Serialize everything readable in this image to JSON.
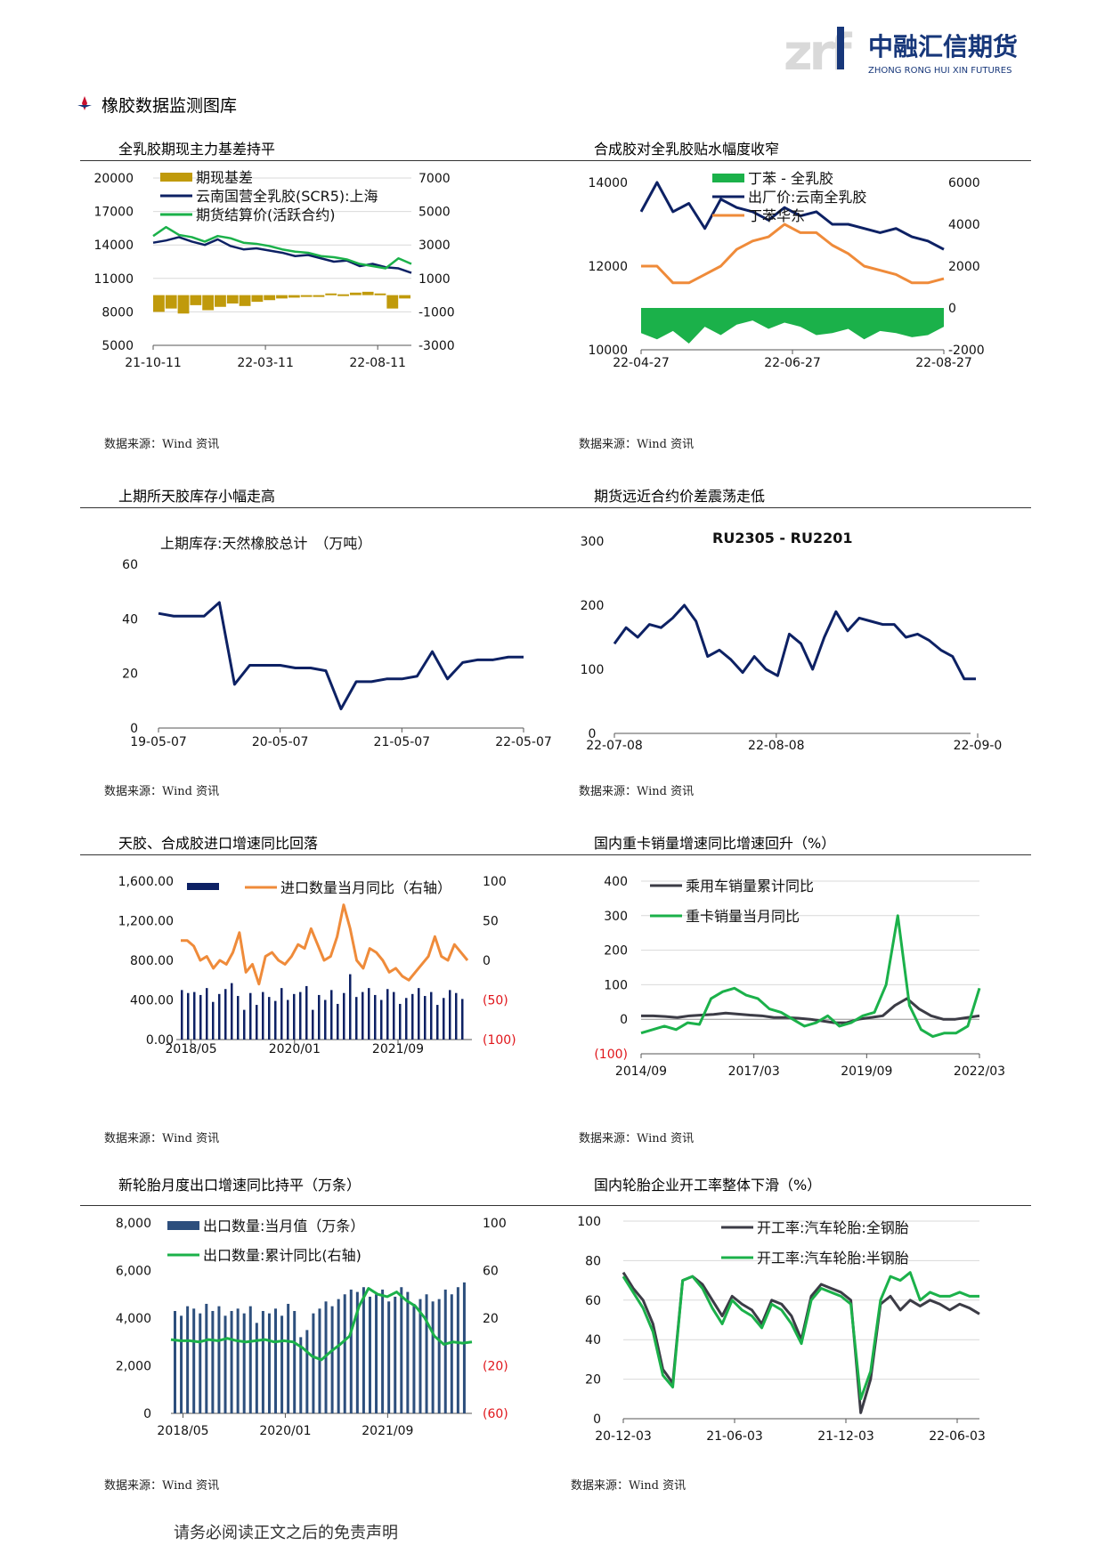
{
  "header": {
    "logo_cn": "中融汇信期货",
    "logo_en": "ZHONG RONG HUI XIN FUTURES",
    "logo_mark": "zrf",
    "section_title": "橡胶数据监测图库"
  },
  "footer": {
    "text": "请务必阅读正文之后的免责声明"
  },
  "panels": [
    {
      "title": "全乳胶期现主力基差持平",
      "source": "数据来源：Wind 资讯"
    },
    {
      "title": "合成胶对全乳胶贴水幅度收窄",
      "source": "数据来源：Wind 资讯"
    },
    {
      "title": "上期所天胶库存小幅走高",
      "source": "数据来源：Wind 资讯"
    },
    {
      "title": "期货远近合约价差震荡走低",
      "source": "数据来源：Wind 资讯"
    },
    {
      "title": "天胶、合成胶进口增速同比回落",
      "source": "数据来源：Wind 资讯"
    },
    {
      "title": "国内重卡销量增速同比增速回升（%）",
      "source": "数据来源：Wind 资讯"
    },
    {
      "title": "新轮胎月度出口增速同比持平（万条）",
      "source": "数据来源：Wind 资讯"
    },
    {
      "title": "国内轮胎企业开工率整体下滑（%）",
      "source": "数据来源：Wind 资讯"
    }
  ],
  "chart_data": [
    {
      "type": "line",
      "x_ticks": [
        "21-10-11",
        "22-03-11",
        "22-08-11"
      ],
      "y_left_ticks": [
        "20000",
        "17000",
        "14000",
        "11000",
        "8000",
        "5000"
      ],
      "y_right_ticks": [
        "7000",
        "5000",
        "3000",
        "1000",
        "-1000",
        "-3000"
      ],
      "ylim_left": [
        5000,
        20000
      ],
      "ylim_right": [
        -3000,
        7000
      ],
      "legend_placement": "top-left",
      "series": [
        {
          "name": "期现基差",
          "kind": "bar",
          "axis": "right",
          "color": "#c09a0b",
          "values": [
            -1000,
            -800,
            -1100,
            -600,
            -900,
            -700,
            -500,
            -650,
            -400,
            -300,
            -200,
            -150,
            -100,
            0,
            100,
            50,
            150,
            200,
            100,
            -800,
            -200
          ]
        },
        {
          "name": "云南国营全乳胶(SCR5):上海",
          "kind": "line",
          "axis": "left",
          "color": "#0d2164",
          "values": [
            14200,
            14400,
            14700,
            14300,
            14000,
            14500,
            13900,
            13600,
            13700,
            13500,
            13300,
            13000,
            13100,
            12800,
            12500,
            12600,
            12100,
            12300,
            12000,
            11900,
            11500
          ]
        },
        {
          "name": "期货结算价(活跃合约)",
          "kind": "line",
          "axis": "left",
          "color": "#1bb14a",
          "values": [
            14800,
            15600,
            14900,
            14700,
            14300,
            14800,
            14600,
            14200,
            14100,
            13900,
            13600,
            13400,
            13300,
            13000,
            12900,
            12700,
            12300,
            12100,
            11900,
            12800,
            12300
          ]
        }
      ]
    },
    {
      "type": "line",
      "x_ticks": [
        "22-04-27",
        "22-06-27",
        "22-08-27"
      ],
      "y_left_ticks": [
        "14000",
        "12000",
        "10000"
      ],
      "y_right_ticks": [
        "6000",
        "4000",
        "2000",
        "0",
        "-2000"
      ],
      "ylim_left": [
        10000,
        14000
      ],
      "ylim_right": [
        -2000,
        6000
      ],
      "legend_placement": "top-right",
      "series": [
        {
          "name": "丁苯 - 全乳胶",
          "kind": "area",
          "axis": "right",
          "color": "#1bb14a",
          "values": [
            -1200,
            -1500,
            -1100,
            -1700,
            -900,
            -1300,
            -800,
            -600,
            -1000,
            -700,
            -900,
            -1300,
            -1200,
            -1000,
            -1500,
            -1100,
            -1200,
            -1400,
            -1300,
            -900
          ]
        },
        {
          "name": "出厂价:云南全乳胶",
          "kind": "line",
          "axis": "left",
          "color": "#0d2164",
          "values": [
            13300,
            14000,
            13300,
            13500,
            12900,
            13600,
            13400,
            13300,
            13100,
            13400,
            13200,
            13300,
            13000,
            13000,
            12900,
            12800,
            12900,
            12700,
            12600,
            12400
          ]
        },
        {
          "name": "丁苯华东",
          "kind": "line",
          "axis": "left",
          "color": "#ef8b3a",
          "values": [
            12000,
            12000,
            11600,
            11600,
            11800,
            12000,
            12400,
            12600,
            12700,
            13000,
            12800,
            12800,
            12500,
            12300,
            12000,
            11900,
            11800,
            11600,
            11600,
            11700
          ]
        }
      ]
    },
    {
      "type": "line",
      "title": "上期库存:天然橡胶总计　（万吨）",
      "x_ticks": [
        "19-05-07",
        "20-05-07",
        "21-05-07",
        "22-05-07"
      ],
      "y_ticks": [
        "60",
        "40",
        "20",
        "0"
      ],
      "ylim": [
        0,
        60
      ],
      "series": [
        {
          "name": "",
          "color": "#0d2164",
          "values": [
            42,
            41,
            41,
            41,
            46,
            16,
            23,
            23,
            23,
            22,
            22,
            21,
            7,
            17,
            17,
            18,
            18,
            19,
            28,
            18,
            24,
            25,
            25,
            26,
            26
          ]
        }
      ]
    },
    {
      "type": "line",
      "title": "RU2305 - RU2201",
      "x_ticks": [
        "22-07-08",
        "22-08-08",
        "22-09-0"
      ],
      "y_ticks": [
        "300",
        "200",
        "100",
        "0"
      ],
      "ylim": [
        0,
        300
      ],
      "series": [
        {
          "name": "",
          "color": "#0d2164",
          "values": [
            140,
            165,
            150,
            170,
            165,
            180,
            200,
            175,
            120,
            130,
            115,
            95,
            120,
            100,
            90,
            155,
            140,
            100,
            150,
            190,
            160,
            180,
            175,
            170,
            170,
            150,
            155,
            145,
            130,
            120,
            85,
            85
          ]
        }
      ]
    },
    {
      "type": "bar",
      "x_ticks": [
        "2018/05",
        "2020/01",
        "2021/09"
      ],
      "y_left_ticks": [
        "1,600.00",
        "1,200.00",
        "800.00",
        "400.00",
        "0.00"
      ],
      "y_right_ticks": [
        "100",
        "50",
        "0",
        "(50)",
        "(100)"
      ],
      "ylim_left": [
        0,
        1600
      ],
      "ylim_right": [
        -100,
        100
      ],
      "legend_placement": "top",
      "series": [
        {
          "name": "",
          "kind": "bar",
          "axis": "left",
          "color": "#0d2164",
          "values": [
            500,
            470,
            480,
            450,
            520,
            380,
            460,
            510,
            570,
            440,
            300,
            470,
            350,
            480,
            430,
            390,
            520,
            400,
            460,
            480,
            540,
            300,
            450,
            400,
            500,
            360,
            470,
            660,
            430,
            480,
            520,
            450,
            400,
            510,
            480,
            360,
            420,
            460,
            520,
            440,
            480,
            350,
            420,
            500,
            470,
            410
          ]
        },
        {
          "name": "进口数量当月同比（右轴）",
          "kind": "line",
          "axis": "right",
          "color": "#ef8b3a",
          "values": [
            25,
            25,
            18,
            0,
            5,
            -10,
            0,
            -5,
            10,
            35,
            -15,
            -5,
            -30,
            5,
            10,
            0,
            -5,
            5,
            20,
            15,
            40,
            20,
            0,
            5,
            30,
            70,
            40,
            0,
            -10,
            15,
            10,
            0,
            -15,
            -10,
            -20,
            -25,
            -15,
            -5,
            5,
            30,
            5,
            0,
            20,
            10,
            0
          ]
        }
      ]
    },
    {
      "type": "line",
      "x_ticks": [
        "2014/09",
        "2017/03",
        "2019/09",
        "2022/03"
      ],
      "y_ticks": [
        "400",
        "300",
        "200",
        "100",
        "0",
        "(100)"
      ],
      "ylim": [
        -100,
        400
      ],
      "legend_placement": "top-left",
      "series": [
        {
          "name": "乘用车销量累计同比",
          "color": "#3c3c46",
          "values": [
            10,
            10,
            8,
            5,
            10,
            12,
            14,
            18,
            15,
            12,
            10,
            5,
            5,
            3,
            0,
            -5,
            -10,
            -10,
            0,
            5,
            10,
            40,
            60,
            30,
            10,
            0,
            0,
            5,
            10
          ]
        },
        {
          "name": "重卡销量当月同比",
          "color": "#1bb14a",
          "values": [
            -40,
            -30,
            -20,
            -30,
            -10,
            -15,
            60,
            80,
            90,
            70,
            60,
            30,
            20,
            0,
            -20,
            -10,
            10,
            -20,
            -10,
            10,
            20,
            100,
            300,
            40,
            -30,
            -50,
            -40,
            -40,
            -20,
            90
          ]
        }
      ]
    },
    {
      "type": "bar",
      "x_ticks": [
        "2018/05",
        "2020/01",
        "2021/09"
      ],
      "y_left_ticks": [
        "8,000",
        "6,000",
        "4,000",
        "2,000",
        "0"
      ],
      "y_right_ticks": [
        "100",
        "60",
        "20",
        "(20)",
        "(60)"
      ],
      "ylim_left": [
        0,
        8000
      ],
      "ylim_right": [
        -60,
        100
      ],
      "legend_placement": "top-left",
      "series": [
        {
          "name": "出口数量:当月值（万条）",
          "kind": "bar",
          "axis": "left",
          "color": "#2d4f7d",
          "values": [
            4300,
            4100,
            4500,
            4400,
            4200,
            4600,
            4300,
            4500,
            4100,
            4300,
            4400,
            4200,
            4500,
            3800,
            4300,
            4200,
            4400,
            4100,
            4600,
            4300,
            3200,
            3500,
            4200,
            4400,
            4700,
            4500,
            4800,
            5000,
            5200,
            5100,
            5300,
            4900,
            5000,
            5200,
            4700,
            4900,
            5300,
            5100,
            4600,
            4800,
            5000,
            4700,
            4800,
            5200,
            5000,
            5300,
            5500
          ]
        },
        {
          "name": "出口数量:累计同比(右轴)",
          "kind": "line",
          "axis": "right",
          "color": "#1bb14a",
          "values": [
            2,
            1,
            1,
            0,
            2,
            1,
            3,
            1,
            0,
            1,
            2,
            0,
            1,
            0,
            -5,
            -12,
            -15,
            -8,
            -2,
            5,
            30,
            45,
            40,
            38,
            42,
            35,
            30,
            20,
            5,
            -2,
            0,
            -1,
            0
          ]
        }
      ]
    },
    {
      "type": "line",
      "x_ticks": [
        "20-12-03",
        "21-06-03",
        "21-12-03",
        "22-06-03"
      ],
      "y_ticks": [
        "100",
        "80",
        "60",
        "40",
        "20",
        "0"
      ],
      "ylim": [
        0,
        100
      ],
      "legend_placement": "top-right",
      "series": [
        {
          "name": "开工率:汽车轮胎:全钢胎",
          "color": "#3c3c46",
          "values": [
            74,
            66,
            60,
            48,
            25,
            18,
            70,
            72,
            68,
            60,
            52,
            62,
            58,
            55,
            48,
            60,
            58,
            52,
            40,
            62,
            68,
            66,
            64,
            60,
            3,
            20,
            58,
            62,
            55,
            60,
            57,
            60,
            58,
            55,
            58,
            56,
            53
          ]
        },
        {
          "name": "开工率:汽车轮胎:半钢胎",
          "color": "#1bb14a",
          "values": [
            72,
            64,
            56,
            44,
            22,
            16,
            70,
            72,
            66,
            56,
            48,
            60,
            55,
            52,
            46,
            58,
            55,
            48,
            38,
            60,
            66,
            64,
            62,
            58,
            10,
            24,
            60,
            72,
            70,
            74,
            60,
            64,
            62,
            62,
            64,
            62,
            62
          ]
        }
      ]
    }
  ]
}
